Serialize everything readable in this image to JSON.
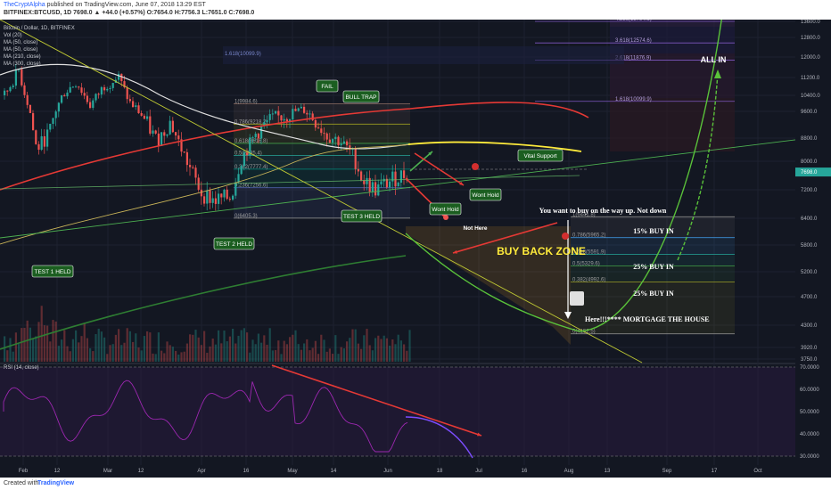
{
  "header": {
    "author": "TheCryptAlpha",
    "published_text": "published on TradingView.com, June 07, 2018 13:29 EST",
    "symbol_line": "BITFINEX:BTCUSD, 1D  7698.0 ▲ +44.0 (+0.57%) O:7654.0 H:7756.3 L:7651.0 C:7698.0"
  },
  "legend": [
    "Bitcoin / Dollar, 1D, BITFINEX",
    "Vol (20)",
    "MA (50, close)",
    "MA (50, close)",
    "MA (210, close)",
    "MA (300, close)"
  ],
  "rsi_label": "RSI (14, close)",
  "footer": {
    "created_with": "Created with",
    "brand": "TradingView"
  },
  "chart_data": {
    "type": "candlestick",
    "y_ticks": [
      "13600.0",
      "12800.0",
      "12000.0",
      "11200.0",
      "10400.0",
      "9600.0",
      "8800.0",
      "8000.0",
      "7200.0",
      "6400.0",
      "5800.0",
      "5200.0",
      "4700.0",
      "4300.0",
      "3920.0",
      "3750.0"
    ],
    "y_values": [
      13600,
      12800,
      12000,
      11200,
      10400,
      9600,
      8800,
      8000,
      7200,
      6400,
      5800,
      5200,
      4700,
      4300,
      3920,
      3750
    ],
    "price_label": "7698.0",
    "rsi_ticks": [
      "70.0000",
      "60.0000",
      "50.0000",
      "40.0000",
      "30.0000"
    ],
    "rsi_values": [
      70,
      60,
      50,
      40,
      30
    ],
    "x_labels": [
      "Feb",
      "12",
      "Mar",
      "12",
      "Apr",
      "16",
      "May",
      "14",
      "Jun",
      "18",
      "Jul",
      "16",
      "Aug",
      "13",
      "Sep",
      "17",
      "Oct"
    ],
    "fib_levels": [
      {
        "label": "1(9984.6)",
        "value": 9984.6
      },
      {
        "label": "0.786(9218.2)",
        "value": 9218.2
      },
      {
        "label": "0.618(8616.8)",
        "value": 8616.8
      },
      {
        "label": "0.5(8195.4)",
        "value": 8195.4
      },
      {
        "label": "0.382(7777.4)",
        "value": 7777.4
      },
      {
        "label": "0.236(7256.6)",
        "value": 7256.6
      },
      {
        "label": "0(6405.3)",
        "value": 6405.3
      }
    ],
    "buyback_fib_levels": [
      {
        "label": "1(6441.8)",
        "value": 6441.8
      },
      {
        "label": "0.786(5965.2)",
        "value": 5965.2
      },
      {
        "label": "0.618(5591.9)",
        "value": 5591.9
      },
      {
        "label": "0.5(5329.6)",
        "value": 5329.6
      },
      {
        "label": "0.382(4992.6)",
        "value": 4992.6
      },
      {
        "label": "0(4152.5)",
        "value": 4152.5
      }
    ],
    "ext_levels": [
      {
        "label": "4.236(13794.6)",
        "value": 13794.6
      },
      {
        "label": "3.618(12574.6)",
        "value": 12574.6
      },
      {
        "label": "2.618(11876.9)",
        "value": 11876.9
      },
      {
        "label": "1.618(10099.9)",
        "value": 10099.9
      }
    ],
    "callouts": {
      "fail": "FAIL",
      "bull_trap": "BULL TRAP",
      "vital_support": "Vital Support",
      "wont_hold_1": "Wont Hold",
      "wont_hold_2": "Wont Hold",
      "test1": "TEST 1 HELD",
      "test2": "TEST 2 HELD",
      "test3": "TEST 3 HELD",
      "all_in": "ALL IN",
      "not_here": "Not Here",
      "buy_back_zone": "BUY BACK ZONE",
      "buy_way_up": "You want to buy on the way up. Not down",
      "buy15": "15% BUY IN",
      "buy25a": "25% BUY IN",
      "buy25b": "25% BUY IN",
      "mortgage": "Here!!!****  MORTGAGE THE HOUSE"
    },
    "colors": {
      "up": "#26a69a",
      "down": "#ef5350",
      "ma50": "#e0e0e0",
      "ma210": "#e53935",
      "ma300": "#2e7d32",
      "yellow": "#ffeb3b",
      "green": "#4caf50",
      "rsi": "#9c27b0"
    }
  }
}
